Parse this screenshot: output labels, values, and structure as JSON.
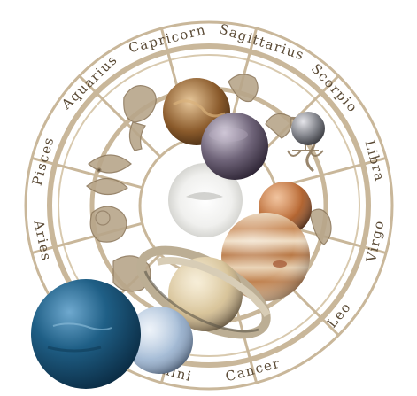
{
  "zodiac": {
    "signs": [
      {
        "id": "capricorn",
        "label": "Capricorn",
        "angle": -104
      },
      {
        "id": "sagittarius",
        "label": "Sagittarius",
        "angle": -72
      },
      {
        "id": "scorpio",
        "label": "Scorpio",
        "angle": -43
      },
      {
        "id": "libra",
        "label": "Libra",
        "angle": -15
      },
      {
        "id": "virgo",
        "label": "Virgo",
        "angle": 12
      },
      {
        "id": "leo",
        "label": "Leo",
        "angle": 40
      },
      {
        "id": "cancer",
        "label": "Cancer",
        "angle": 75
      },
      {
        "id": "gemini",
        "label": "Gemini",
        "angle": 105
      },
      {
        "id": "aries",
        "label": "Aries",
        "angle": 168
      },
      {
        "id": "pisces",
        "label": "Pisces",
        "angle": -165
      },
      {
        "id": "aquarius",
        "label": "Aquarius",
        "angle": -134
      }
    ]
  },
  "colors": {
    "ring": "#c9b79a",
    "ring_dark": "#a89274",
    "label": "#5a4a35",
    "neptune": "#1f5f86",
    "uranus": "#a9bfd8",
    "saturn": "#d8c49a",
    "jupiter": "#c98a57",
    "mars": "#b96a35",
    "venus": "#6f6479",
    "mercury": "#7d7f86"
  },
  "icons": [
    "zodiac-wheel",
    "neptune",
    "uranus",
    "saturn",
    "jupiter",
    "mars",
    "venus",
    "mercury",
    "moon-center",
    "sign-figures"
  ]
}
